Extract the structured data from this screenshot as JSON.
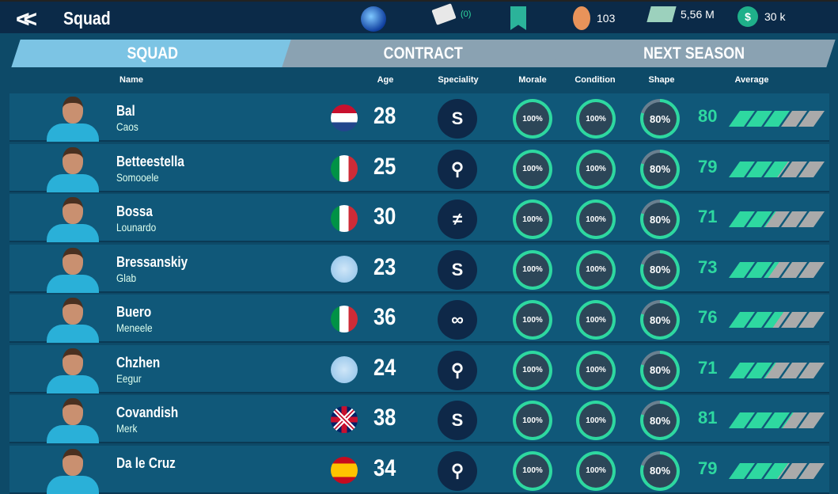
{
  "header": {
    "title": "Squad",
    "mail_count": "(0)",
    "coins": "103",
    "cash": "5,56 M",
    "money": "30 k"
  },
  "tabs": [
    {
      "label": "SQUAD",
      "active": true
    },
    {
      "label": "CONTRACT",
      "active": false
    },
    {
      "label": "NEXT SEASON",
      "active": false
    }
  ],
  "columns": {
    "name": "Name",
    "age": "Age",
    "speciality": "Speciality",
    "morale": "Morale",
    "condition": "Condition",
    "shape": "Shape",
    "average": "Average"
  },
  "colors": {
    "accent": "#2ed8a0",
    "gray": "#aaaaaa",
    "active_tab": "#7cc4e4",
    "inactive_tab": "#8aa2b2"
  },
  "average_scale": [
    50,
    100
  ],
  "riders": [
    {
      "name": "Bal",
      "first": "Caos",
      "flag": "netherlands",
      "age": "28",
      "speciality": "sprint-icon",
      "morale": "100%",
      "condition": "100%",
      "shape": "80%",
      "average": "80"
    },
    {
      "name": "Betteestella",
      "first": "Somooele",
      "flag": "italy",
      "age": "25",
      "speciality": "climber-icon",
      "morale": "100%",
      "condition": "100%",
      "shape": "80%",
      "average": "79"
    },
    {
      "name": "Bossa",
      "first": "Lounardo",
      "flag": "italy",
      "age": "30",
      "speciality": "cobbles-icon",
      "morale": "100%",
      "condition": "100%",
      "shape": "80%",
      "average": "71"
    },
    {
      "name": "Bressanskiy",
      "first": "Glab",
      "flag": "argentina",
      "age": "23",
      "speciality": "sprint-icon",
      "morale": "100%",
      "condition": "100%",
      "shape": "80%",
      "average": "73"
    },
    {
      "name": "Buero",
      "first": "Meneele",
      "flag": "italy",
      "age": "36",
      "speciality": "time-trial-icon",
      "morale": "100%",
      "condition": "100%",
      "shape": "80%",
      "average": "76"
    },
    {
      "name": "Chzhen",
      "first": "Eegur",
      "flag": "argentina",
      "age": "24",
      "speciality": "climber-icon",
      "morale": "100%",
      "condition": "100%",
      "shape": "80%",
      "average": "71"
    },
    {
      "name": "Covandish",
      "first": "Merk",
      "flag": "uk",
      "age": "38",
      "speciality": "sprint-icon",
      "morale": "100%",
      "condition": "100%",
      "shape": "80%",
      "average": "81"
    },
    {
      "name": "Da le Cruz",
      "first": "",
      "flag": "spain",
      "age": "34",
      "speciality": "climber-icon",
      "morale": "100%",
      "condition": "100%",
      "shape": "80%",
      "average": "79"
    }
  ]
}
